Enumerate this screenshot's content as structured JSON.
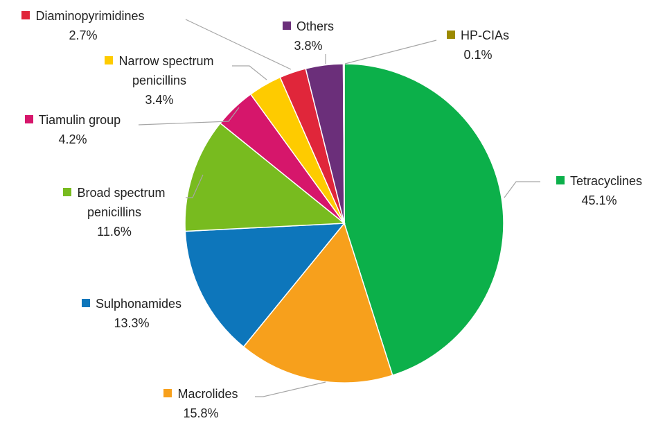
{
  "chart_data": {
    "type": "pie",
    "categories": [
      "Tetracyclines",
      "Macrolides",
      "Sulphonamides",
      "Broad spectrum penicillins",
      "Tiamulin group",
      "Narrow spectrum penicillins",
      "Diaminopyrimidines",
      "Others",
      "HP-CIAs"
    ],
    "values": [
      45.1,
      15.8,
      13.3,
      11.6,
      4.2,
      3.4,
      2.7,
      3.8,
      0.1
    ],
    "value_labels": [
      "45.1%",
      "15.8%",
      "13.3%",
      "11.6%",
      "4.2%",
      "3.4%",
      "2.7%",
      "3.8%",
      "0.1%"
    ],
    "colors": [
      "#0cb04a",
      "#f7a01c",
      "#0d76bb",
      "#78bb1f",
      "#d6166b",
      "#fecb00",
      "#e0263a",
      "#6b2f7a",
      "#9c8a00"
    ]
  }
}
